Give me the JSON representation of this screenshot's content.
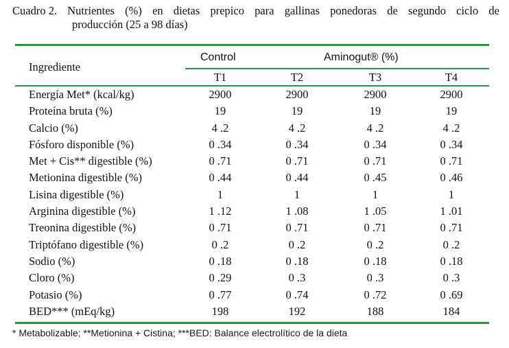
{
  "caption": {
    "words": [
      "Cuadro 2.",
      "Nutrientes",
      "(%)",
      "en",
      "dietas",
      "prepico",
      "para",
      "gallinas",
      "ponedoras",
      "de",
      "segundo",
      "ciclo",
      "de"
    ],
    "line2": "producción (25 a 98 días)"
  },
  "table": {
    "header": {
      "ingredient": "Ingrediente",
      "group_control": "Control",
      "group_aminogut": "Aminogut® (%)",
      "columns": [
        "T1",
        "T2",
        "T3",
        "T4"
      ]
    },
    "rows": [
      {
        "name": "Energía Met* (kcal/kg)",
        "values": [
          "2900",
          "2900",
          "2900",
          "2900"
        ]
      },
      {
        "name": "Proteína bruta (%)",
        "values": [
          "19",
          "19",
          "19",
          "19"
        ]
      },
      {
        "name": "Calcio (%)",
        "values": [
          "4 .2",
          "4 .2",
          "4 .2",
          "4 .2"
        ]
      },
      {
        "name": "Fósforo disponible (%)",
        "values": [
          "0 .34",
          "0 .34",
          "0 .34",
          "0 .34"
        ]
      },
      {
        "name": "Met + Cis** digestible (%)",
        "values": [
          "0 .71",
          "0 .71",
          "0 .71",
          "0 .71"
        ]
      },
      {
        "name": "Metionina digestible (%)",
        "values": [
          "0 .44",
          "0 .44",
          "0 .45",
          "0 .46"
        ]
      },
      {
        "name": "Lisina digestible (%)",
        "values": [
          "1",
          "1",
          "1",
          "1"
        ]
      },
      {
        "name": "Arginina digestible (%)",
        "values": [
          "1 .12",
          "1 .08",
          "1 .05",
          "1 .01"
        ]
      },
      {
        "name": "Treonina digestible (%)",
        "values": [
          "0 .71",
          "0 .71",
          "0 .71",
          "0 .71"
        ]
      },
      {
        "name": "Triptófano digestible (%)",
        "values": [
          "0 .2",
          "0 .2",
          "0 .2",
          "0 .2"
        ]
      },
      {
        "name": "Sodio (%)",
        "values": [
          "0 .18",
          "0 .18",
          "0 .18",
          "0 .18"
        ]
      },
      {
        "name": "Cloro (%)",
        "values": [
          "0 .29",
          "0 .3",
          "0 .3",
          "0 .3"
        ]
      },
      {
        "name": "Potasio (%)",
        "values": [
          "0 .77",
          "0 .74",
          "0 .72",
          "0 .69"
        ]
      },
      {
        "name": "BED*** (mEq/kg)",
        "values": [
          "198",
          "192",
          "188",
          "184"
        ]
      }
    ]
  },
  "footnote": "* Metabolizable; **Metionina + Cistina; ***BED: Balance electrolítico de la dieta",
  "colors": {
    "rule": "#1f9a3a",
    "text": "#111111"
  }
}
